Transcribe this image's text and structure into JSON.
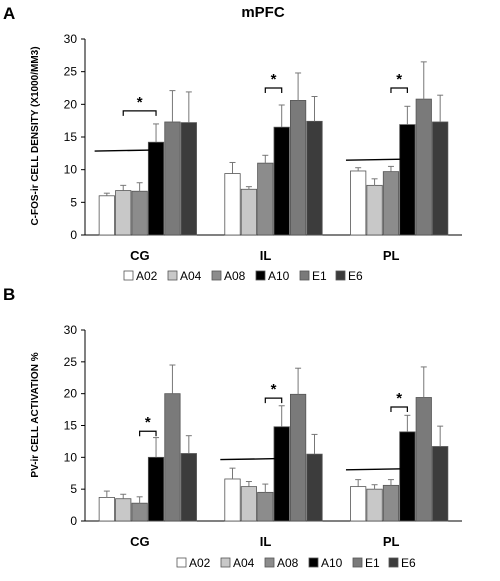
{
  "colors": {
    "A02": "#ffffff",
    "A04": "#c8c8c8",
    "A08": "#8c8c8c",
    "A10": "#000000",
    "E1": "#7a7a7a",
    "E6": "#3c3c3c",
    "stroke": "#555555"
  },
  "chart_data": [
    {
      "type": "bar",
      "panel": "A",
      "title": "mPFC",
      "ylabel": "C-FOS-ir CELL DENSITY (X1000/MM3)",
      "xlabel": "",
      "ylim": [
        0,
        30
      ],
      "yticks": [
        0,
        5,
        10,
        15,
        20,
        25,
        30
      ],
      "categories": [
        "CG",
        "IL",
        "PL"
      ],
      "legend_position": "bottom",
      "series": [
        {
          "name": "A02",
          "values": [
            6.0,
            9.4,
            9.8
          ],
          "errors": [
            0.4,
            1.7,
            0.5
          ]
        },
        {
          "name": "A04",
          "values": [
            6.8,
            7.0,
            7.6
          ],
          "errors": [
            0.8,
            0.4,
            1.0
          ]
        },
        {
          "name": "A08",
          "values": [
            6.7,
            11.0,
            9.7
          ],
          "errors": [
            1.3,
            1.2,
            0.8
          ]
        },
        {
          "name": "A10",
          "values": [
            14.2,
            16.5,
            16.9
          ],
          "errors": [
            2.8,
            3.4,
            2.8
          ]
        },
        {
          "name": "E1",
          "values": [
            17.3,
            20.6,
            20.8
          ],
          "errors": [
            4.8,
            4.2,
            5.7
          ]
        },
        {
          "name": "E6",
          "values": [
            17.2,
            17.4,
            17.3
          ],
          "errors": [
            4.7,
            3.8,
            4.1
          ]
        }
      ],
      "annotations": [
        {
          "category": "CG",
          "bracket": [
            "A04",
            "A10"
          ],
          "level": 19.0,
          "label": "*"
        },
        {
          "category": "IL",
          "bracket": [
            "A08",
            "A10"
          ],
          "level": 22.5,
          "label": "*"
        },
        {
          "category": "PL",
          "bracket": [
            "A08",
            "A10"
          ],
          "level": 22.5,
          "label": "*"
        }
      ],
      "baselines": [
        {
          "category": "CG",
          "from": "A02",
          "to": "A08",
          "level": 13.0
        },
        {
          "category": "PL",
          "from": "A02",
          "to": "A08",
          "level": 11.6
        }
      ]
    },
    {
      "type": "bar",
      "panel": "B",
      "title": "",
      "ylabel": "PV-ir CELL ACTIVATION %",
      "xlabel": "",
      "ylim": [
        0,
        30
      ],
      "yticks": [
        0,
        5,
        10,
        15,
        20,
        25,
        30
      ],
      "categories": [
        "CG",
        "IL",
        "PL"
      ],
      "legend_position": "bottom",
      "series": [
        {
          "name": "A02",
          "values": [
            3.7,
            6.6,
            5.4
          ],
          "errors": [
            1.0,
            1.7,
            1.1
          ]
        },
        {
          "name": "A04",
          "values": [
            3.5,
            5.4,
            5.0
          ],
          "errors": [
            0.7,
            0.8,
            0.7
          ]
        },
        {
          "name": "A08",
          "values": [
            2.8,
            4.5,
            5.6
          ],
          "errors": [
            1.0,
            1.3,
            0.9
          ]
        },
        {
          "name": "A10",
          "values": [
            10.0,
            14.8,
            14.0
          ],
          "errors": [
            3.1,
            3.3,
            2.6
          ]
        },
        {
          "name": "E1",
          "values": [
            20.0,
            19.9,
            19.4
          ],
          "errors": [
            4.5,
            4.1,
            4.8
          ]
        },
        {
          "name": "E6",
          "values": [
            10.6,
            10.5,
            11.7
          ],
          "errors": [
            2.8,
            3.1,
            3.2
          ]
        }
      ],
      "annotations": [
        {
          "category": "CG",
          "bracket": [
            "A08",
            "A10"
          ],
          "level": 14.1,
          "label": "*"
        },
        {
          "category": "IL",
          "bracket": [
            "A08",
            "A10"
          ],
          "level": 19.3,
          "label": "*"
        },
        {
          "category": "PL",
          "bracket": [
            "A08",
            "A10"
          ],
          "level": 17.9,
          "label": "*"
        }
      ],
      "baselines": [
        {
          "category": "IL",
          "from": "A02",
          "to": "A08",
          "level": 9.8
        },
        {
          "category": "PL",
          "from": "A02",
          "to": "A08",
          "level": 8.2
        }
      ]
    }
  ]
}
